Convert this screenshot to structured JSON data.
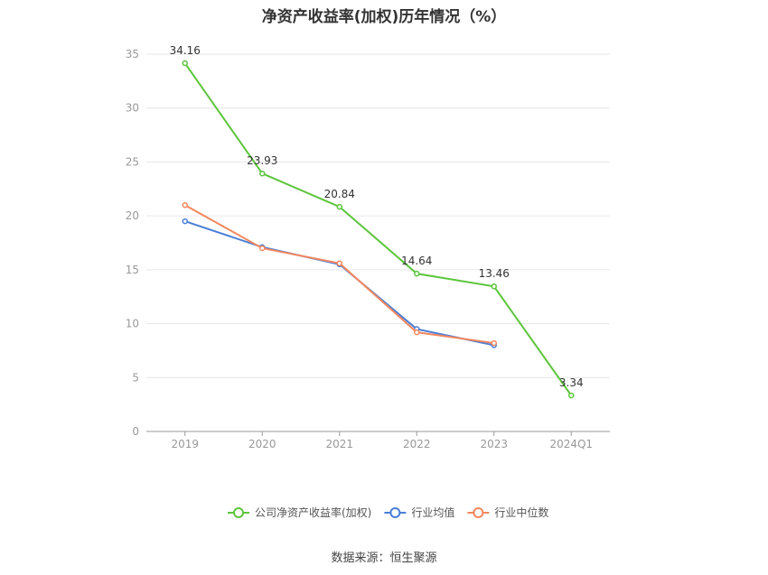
{
  "title": "净资产收益率(加权)历年情况（%）",
  "source": "数据来源：恒生聚源",
  "chart_data": {
    "type": "line",
    "categories": [
      "2019",
      "2020",
      "2021",
      "2022",
      "2023",
      "2024Q1"
    ],
    "ylim": [
      0,
      35
    ],
    "yticks": [
      0,
      5,
      10,
      15,
      20,
      25,
      30,
      35
    ],
    "grid": true,
    "legend_position": "bottom",
    "series": [
      {
        "name": "公司净资产收益率(加权)",
        "color": "#5cc53b",
        "values": [
          34.16,
          23.93,
          20.84,
          14.64,
          13.46,
          3.34
        ],
        "labels": true
      },
      {
        "name": "行业均值",
        "color": "#4a7fd6",
        "values": [
          19.5,
          17.1,
          15.5,
          9.5,
          8.0,
          null
        ],
        "labels": false
      },
      {
        "name": "行业中位数",
        "color": "#f4875e",
        "values": [
          21.0,
          17.0,
          15.6,
          9.2,
          8.2,
          null
        ],
        "labels": false
      }
    ]
  }
}
